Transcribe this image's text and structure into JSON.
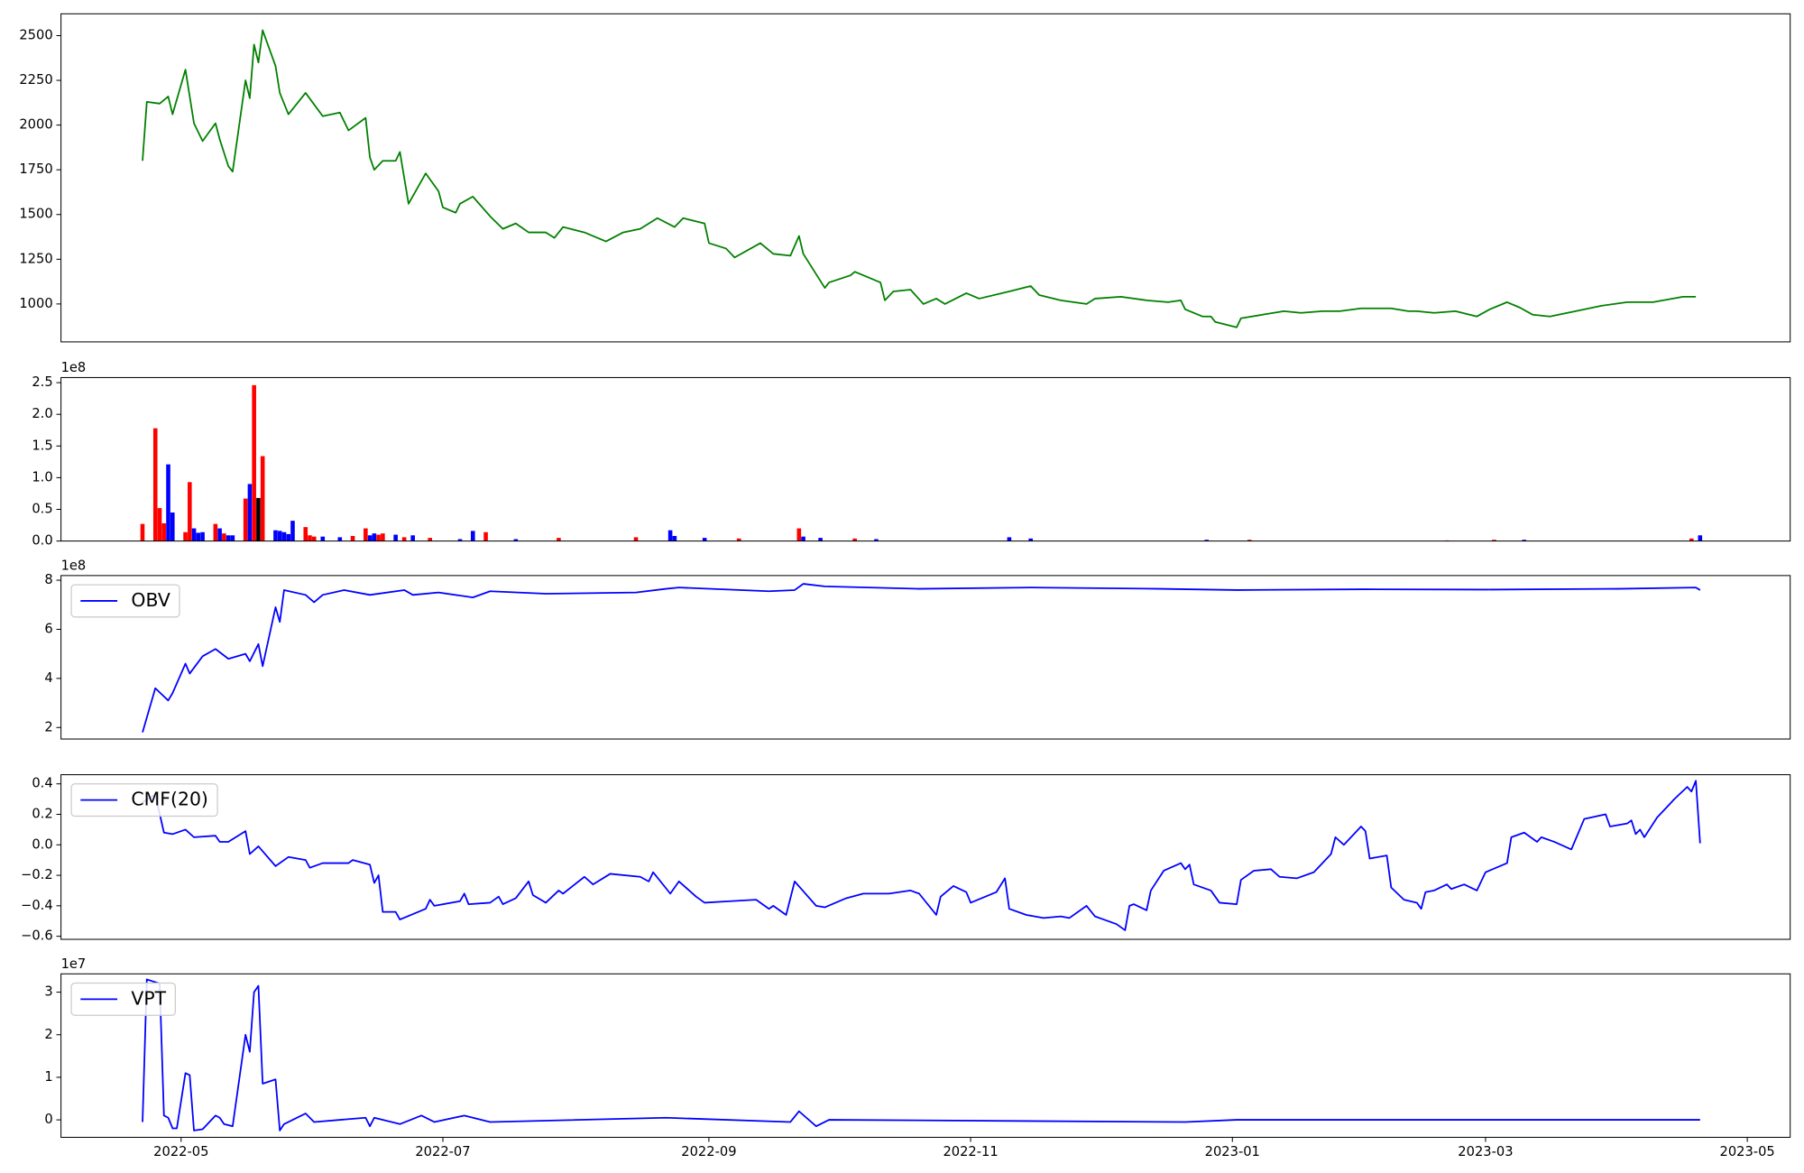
{
  "chart_data": [
    {
      "type": "line",
      "color": "green",
      "x": [
        "2022-04-22",
        "2022-04-23",
        "2022-04-26",
        "2022-04-28",
        "2022-04-29",
        "2022-05-02",
        "2022-05-04",
        "2022-05-06",
        "2022-05-09",
        "2022-05-10",
        "2022-05-12",
        "2022-05-13",
        "2022-05-16",
        "2022-05-17",
        "2022-05-18",
        "2022-05-19",
        "2022-05-20",
        "2022-05-23",
        "2022-05-24",
        "2022-05-26",
        "2022-05-30",
        "2022-06-03",
        "2022-06-07",
        "2022-06-09",
        "2022-06-13",
        "2022-06-14",
        "2022-06-15",
        "2022-06-17",
        "2022-06-20",
        "2022-06-21",
        "2022-06-23",
        "2022-06-27",
        "2022-06-30",
        "2022-07-01",
        "2022-07-04",
        "2022-07-05",
        "2022-07-08",
        "2022-07-12",
        "2022-07-15",
        "2022-07-18",
        "2022-07-21",
        "2022-07-25",
        "2022-07-27",
        "2022-07-29",
        "2022-08-03",
        "2022-08-08",
        "2022-08-12",
        "2022-08-16",
        "2022-08-20",
        "2022-08-24",
        "2022-08-26",
        "2022-08-31",
        "2022-09-01",
        "2022-09-05",
        "2022-09-07",
        "2022-09-13",
        "2022-09-16",
        "2022-09-20",
        "2022-09-22",
        "2022-09-23",
        "2022-09-28",
        "2022-09-29",
        "2022-10-04",
        "2022-10-05",
        "2022-10-11",
        "2022-10-12",
        "2022-10-14",
        "2022-10-18",
        "2022-10-21",
        "2022-10-24",
        "2022-10-26",
        "2022-10-31",
        "2022-11-03",
        "2022-11-10",
        "2022-11-15",
        "2022-11-17",
        "2022-11-22",
        "2022-11-28",
        "2022-11-30",
        "2022-12-06",
        "2022-12-12",
        "2022-12-17",
        "2022-12-20",
        "2022-12-21",
        "2022-12-25",
        "2022-12-27",
        "2022-12-28",
        "2023-01-02",
        "2023-01-03",
        "2023-01-08",
        "2023-01-13",
        "2023-01-17",
        "2023-01-22",
        "2023-01-26",
        "2023-01-31",
        "2023-02-07",
        "2023-02-11",
        "2023-02-13",
        "2023-02-17",
        "2023-02-22",
        "2023-02-27",
        "2023-03-02",
        "2023-03-06",
        "2023-03-09",
        "2023-03-12",
        "2023-03-16",
        "2023-03-22",
        "2023-03-28",
        "2023-04-03",
        "2023-04-09",
        "2023-04-16",
        "2023-04-19"
      ],
      "values": [
        1800,
        2130,
        2120,
        2160,
        2060,
        2310,
        2010,
        1910,
        2010,
        1920,
        1770,
        1740,
        2250,
        2150,
        2450,
        2350,
        2530,
        2330,
        2180,
        2060,
        2180,
        2050,
        2070,
        1970,
        2040,
        1820,
        1750,
        1800,
        1800,
        1850,
        1560,
        1730,
        1630,
        1540,
        1510,
        1560,
        1600,
        1490,
        1420,
        1450,
        1400,
        1400,
        1370,
        1430,
        1400,
        1350,
        1400,
        1420,
        1480,
        1430,
        1480,
        1450,
        1340,
        1310,
        1260,
        1340,
        1280,
        1270,
        1380,
        1280,
        1090,
        1120,
        1160,
        1180,
        1120,
        1020,
        1070,
        1080,
        1000,
        1030,
        1000,
        1060,
        1030,
        1070,
        1100,
        1050,
        1020,
        1000,
        1030,
        1040,
        1020,
        1010,
        1020,
        970,
        930,
        930,
        900,
        870,
        920,
        940,
        960,
        950,
        960,
        960,
        975,
        975,
        960,
        960,
        950,
        960,
        930,
        970,
        1010,
        980,
        940,
        930,
        960,
        990,
        1010,
        1010,
        1040,
        1040
      ],
      "ylim": [
        788,
        2622
      ],
      "yticks": [
        1000,
        1250,
        1500,
        1750,
        2000,
        2250,
        2500
      ]
    },
    {
      "type": "bar",
      "offset_label": "1e8",
      "x": [
        "2022-04-22",
        "2022-04-25",
        "2022-04-26",
        "2022-04-27",
        "2022-04-28",
        "2022-04-29",
        "2022-05-02",
        "2022-05-03",
        "2022-05-04",
        "2022-05-05",
        "2022-05-06",
        "2022-05-09",
        "2022-05-10",
        "2022-05-11",
        "2022-05-12",
        "2022-05-13",
        "2022-05-16",
        "2022-05-17",
        "2022-05-18",
        "2022-05-19",
        "2022-05-20",
        "2022-05-23",
        "2022-05-24",
        "2022-05-25",
        "2022-05-26",
        "2022-05-27",
        "2022-05-30",
        "2022-05-31",
        "2022-06-01",
        "2022-06-03",
        "2022-06-07",
        "2022-06-10",
        "2022-06-13",
        "2022-06-14",
        "2022-06-15",
        "2022-06-16",
        "2022-06-17",
        "2022-06-20",
        "2022-06-22",
        "2022-06-24",
        "2022-06-28",
        "2022-07-05",
        "2022-07-08",
        "2022-07-11",
        "2022-07-18",
        "2022-07-28",
        "2022-08-15",
        "2022-08-23",
        "2022-08-24",
        "2022-08-31",
        "2022-09-08",
        "2022-09-22",
        "2022-09-23",
        "2022-09-27",
        "2022-10-05",
        "2022-10-10",
        "2022-11-10",
        "2022-11-15",
        "2022-12-26",
        "2023-01-05",
        "2023-02-20",
        "2023-03-03",
        "2023-03-10",
        "2023-04-18",
        "2023-04-20"
      ],
      "values": [
        0.27,
        1.78,
        0.52,
        0.28,
        1.21,
        0.45,
        0.14,
        0.93,
        0.2,
        0.13,
        0.14,
        0.27,
        0.2,
        0.12,
        0.09,
        0.09,
        0.67,
        0.9,
        2.46,
        0.68,
        1.34,
        0.17,
        0.16,
        0.14,
        0.11,
        0.32,
        0.22,
        0.09,
        0.07,
        0.07,
        0.06,
        0.08,
        0.2,
        0.09,
        0.12,
        0.1,
        0.12,
        0.1,
        0.06,
        0.09,
        0.05,
        0.03,
        0.16,
        0.14,
        0.03,
        0.05,
        0.06,
        0.17,
        0.08,
        0.05,
        0.04,
        0.2,
        0.07,
        0.05,
        0.04,
        0.03,
        0.06,
        0.04,
        0.02,
        0.02,
        0.01,
        0.02,
        0.02,
        0.04,
        0.09
      ],
      "colors": [
        "red",
        "red",
        "red",
        "red",
        "blue",
        "blue",
        "red",
        "red",
        "blue",
        "blue",
        "blue",
        "red",
        "blue",
        "red",
        "blue",
        "blue",
        "red",
        "blue",
        "red",
        "black",
        "red",
        "blue",
        "blue",
        "blue",
        "blue",
        "blue",
        "red",
        "red",
        "red",
        "blue",
        "blue",
        "red",
        "red",
        "blue",
        "blue",
        "red",
        "red",
        "blue",
        "red",
        "blue",
        "red",
        "blue",
        "blue",
        "red",
        "blue",
        "red",
        "red",
        "blue",
        "blue",
        "blue",
        "red",
        "red",
        "blue",
        "blue",
        "red",
        "blue",
        "blue",
        "blue",
        "blue",
        "red",
        "red",
        "red",
        "blue",
        "red",
        "blue"
      ],
      "ylim": [
        0,
        2.58
      ],
      "yticks": [
        {
          "value": 0,
          "label": "0.0"
        },
        0.5,
        {
          "value": 1,
          "label": "1.0"
        },
        1.5,
        {
          "value": 2,
          "label": "2.0"
        },
        2.5
      ]
    },
    {
      "type": "line",
      "offset_label": "1e8",
      "legend": "upper left",
      "x": [
        "2022-04-22",
        "2022-04-25",
        "2022-04-28",
        "2022-04-29",
        "2022-05-02",
        "2022-05-03",
        "2022-05-06",
        "2022-05-09",
        "2022-05-12",
        "2022-05-16",
        "2022-05-17",
        "2022-05-19",
        "2022-05-20",
        "2022-05-23",
        "2022-05-24",
        "2022-05-25",
        "2022-05-30",
        "2022-06-01",
        "2022-06-03",
        "2022-06-08",
        "2022-06-14",
        "2022-06-22",
        "2022-06-24",
        "2022-06-30",
        "2022-07-08",
        "2022-07-12",
        "2022-07-25",
        "2022-08-15",
        "2022-08-22",
        "2022-08-25",
        "2022-09-15",
        "2022-09-21",
        "2022-09-23",
        "2022-09-28",
        "2022-10-20",
        "2022-11-15",
        "2022-12-15",
        "2023-01-02",
        "2023-02-01",
        "2023-03-01",
        "2023-04-01",
        "2023-04-19",
        "2023-04-20"
      ],
      "series": [
        {
          "name": "OBV",
          "color": "blue",
          "values": [
            1.8,
            3.6,
            3.1,
            3.4,
            4.6,
            4.2,
            4.9,
            5.2,
            4.8,
            5.0,
            4.7,
            5.4,
            4.5,
            6.9,
            6.3,
            7.6,
            7.4,
            7.1,
            7.4,
            7.6,
            7.4,
            7.6,
            7.4,
            7.5,
            7.3,
            7.55,
            7.45,
            7.5,
            7.65,
            7.7,
            7.55,
            7.6,
            7.85,
            7.75,
            7.65,
            7.7,
            7.65,
            7.6,
            7.63,
            7.62,
            7.65,
            7.7,
            7.6
          ]
        }
      ],
      "ylim": [
        1.53,
        8.19
      ],
      "yticks": [
        2,
        4,
        6,
        8
      ]
    },
    {
      "type": "line",
      "legend": "upper left",
      "x": [
        "2022-04-22",
        "2022-04-25",
        "2022-04-27",
        "2022-04-29",
        "2022-05-02",
        "2022-05-04",
        "2022-05-09",
        "2022-05-10",
        "2022-05-12",
        "2022-05-16",
        "2022-05-17",
        "2022-05-19",
        "2022-05-23",
        "2022-05-26",
        "2022-05-30",
        "2022-05-31",
        "2022-06-03",
        "2022-06-09",
        "2022-06-10",
        "2022-06-14",
        "2022-06-15",
        "2022-06-16",
        "2022-06-17",
        "2022-06-20",
        "2022-06-21",
        "2022-06-27",
        "2022-06-28",
        "2022-06-29",
        "2022-07-05",
        "2022-07-06",
        "2022-07-07",
        "2022-07-12",
        "2022-07-14",
        "2022-07-15",
        "2022-07-18",
        "2022-07-21",
        "2022-07-22",
        "2022-07-25",
        "2022-07-28",
        "2022-07-29",
        "2022-08-03",
        "2022-08-05",
        "2022-08-09",
        "2022-08-16",
        "2022-08-18",
        "2022-08-19",
        "2022-08-23",
        "2022-08-25",
        "2022-08-29",
        "2022-08-31",
        "2022-09-06",
        "2022-09-12",
        "2022-09-15",
        "2022-09-16",
        "2022-09-19",
        "2022-09-21",
        "2022-09-26",
        "2022-09-28",
        "2022-10-03",
        "2022-10-07",
        "2022-10-13",
        "2022-10-18",
        "2022-10-20",
        "2022-10-24",
        "2022-10-25",
        "2022-10-28",
        "2022-10-31",
        "2022-11-01",
        "2022-11-07",
        "2022-11-09",
        "2022-11-10",
        "2022-11-14",
        "2022-11-18",
        "2022-11-22",
        "2022-11-24",
        "2022-11-28",
        "2022-11-30",
        "2022-12-02",
        "2022-12-05",
        "2022-12-07",
        "2022-12-08",
        "2022-12-09",
        "2022-12-12",
        "2022-12-13",
        "2022-12-16",
        "2022-12-20",
        "2022-12-21",
        "2022-12-22",
        "2022-12-23",
        "2022-12-27",
        "2022-12-29",
        "2023-01-02",
        "2023-01-03",
        "2023-01-06",
        "2023-01-10",
        "2023-01-12",
        "2023-01-16",
        "2023-01-20",
        "2023-01-24",
        "2023-01-25",
        "2023-01-27",
        "2023-01-31",
        "2023-02-01",
        "2023-02-02",
        "2023-02-06",
        "2023-02-07",
        "2023-02-10",
        "2023-02-13",
        "2023-02-14",
        "2023-02-15",
        "2023-02-17",
        "2023-02-20",
        "2023-02-21",
        "2023-02-24",
        "2023-02-27",
        "2023-03-01",
        "2023-03-06",
        "2023-03-07",
        "2023-03-10",
        "2023-03-13",
        "2023-03-14",
        "2023-03-17",
        "2023-03-21",
        "2023-03-24",
        "2023-03-29",
        "2023-03-30",
        "2023-04-03",
        "2023-04-04",
        "2023-04-05",
        "2023-04-06",
        "2023-04-07",
        "2023-04-10",
        "2023-04-13",
        "2023-04-14",
        "2023-04-17",
        "2023-04-18",
        "2023-04-19",
        "2023-04-20"
      ],
      "series": [
        {
          "name": "CMF(20)",
          "color": "blue",
          "values": [
            0.28,
            0.33,
            0.08,
            0.07,
            0.1,
            0.05,
            0.06,
            0.02,
            0.02,
            0.09,
            -0.06,
            -0.01,
            -0.14,
            -0.08,
            -0.1,
            -0.15,
            -0.12,
            -0.12,
            -0.1,
            -0.13,
            -0.25,
            -0.2,
            -0.44,
            -0.44,
            -0.49,
            -0.42,
            -0.36,
            -0.4,
            -0.37,
            -0.32,
            -0.39,
            -0.38,
            -0.34,
            -0.39,
            -0.35,
            -0.24,
            -0.33,
            -0.38,
            -0.3,
            -0.32,
            -0.21,
            -0.26,
            -0.19,
            -0.21,
            -0.24,
            -0.18,
            -0.32,
            -0.24,
            -0.34,
            -0.38,
            -0.37,
            -0.36,
            -0.42,
            -0.4,
            -0.46,
            -0.24,
            -0.4,
            -0.41,
            -0.35,
            -0.32,
            -0.32,
            -0.3,
            -0.32,
            -0.46,
            -0.34,
            -0.27,
            -0.31,
            -0.38,
            -0.31,
            -0.22,
            -0.42,
            -0.46,
            -0.48,
            -0.47,
            -0.48,
            -0.4,
            -0.47,
            -0.49,
            -0.52,
            -0.56,
            -0.4,
            -0.39,
            -0.43,
            -0.3,
            -0.17,
            -0.12,
            -0.16,
            -0.13,
            -0.26,
            -0.3,
            -0.38,
            -0.39,
            -0.23,
            -0.17,
            -0.16,
            -0.21,
            -0.22,
            -0.18,
            -0.06,
            0.05,
            0.0,
            0.12,
            0.09,
            -0.09,
            -0.07,
            -0.28,
            -0.36,
            -0.38,
            -0.42,
            -0.31,
            -0.3,
            -0.26,
            -0.29,
            -0.26,
            -0.3,
            -0.18,
            -0.12,
            0.05,
            0.08,
            0.02,
            0.05,
            0.02,
            -0.03,
            0.17,
            0.2,
            0.12,
            0.14,
            0.16,
            0.07,
            0.1,
            0.05,
            0.18,
            0.27,
            0.3,
            0.38,
            0.35,
            0.42,
            0.01
          ]
        }
      ],
      "ylim": [
        -0.62,
        0.46
      ],
      "yticks": [
        {
          "value": -0.6,
          "label": "−0.6"
        },
        {
          "value": -0.4,
          "label": "−0.4"
        },
        {
          "value": -0.2,
          "label": "−0.2"
        },
        {
          "value": 0,
          "label": "0.0"
        },
        0.2,
        0.4
      ]
    },
    {
      "type": "line",
      "offset_label": "1e7",
      "legend": "upper left",
      "x": [
        "2022-04-22",
        "2022-04-23",
        "2022-04-26",
        "2022-04-27",
        "2022-04-28",
        "2022-04-29",
        "2022-04-30",
        "2022-05-02",
        "2022-05-03",
        "2022-05-04",
        "2022-05-06",
        "2022-05-09",
        "2022-05-10",
        "2022-05-11",
        "2022-05-13",
        "2022-05-16",
        "2022-05-17",
        "2022-05-18",
        "2022-05-19",
        "2022-05-20",
        "2022-05-23",
        "2022-05-24",
        "2022-05-25",
        "2022-05-30",
        "2022-06-01",
        "2022-06-13",
        "2022-06-14",
        "2022-06-15",
        "2022-06-21",
        "2022-06-26",
        "2022-06-29",
        "2022-07-06",
        "2022-07-12",
        "2022-08-22",
        "2022-09-20",
        "2022-09-22",
        "2022-09-26",
        "2022-09-29",
        "2022-12-21",
        "2023-01-02",
        "2023-04-20"
      ],
      "series": [
        {
          "name": "VPT",
          "color": "blue",
          "values": [
            -0.05,
            3.3,
            3.2,
            0.1,
            0.05,
            -0.2,
            -0.2,
            1.1,
            1.05,
            -0.25,
            -0.22,
            0.1,
            0.05,
            -0.1,
            -0.15,
            2.0,
            1.6,
            3.0,
            3.15,
            0.85,
            0.95,
            -0.25,
            -0.1,
            0.15,
            -0.05,
            0.05,
            -0.15,
            0.05,
            -0.1,
            0.1,
            -0.05,
            0.1,
            -0.05,
            0.05,
            -0.05,
            0.2,
            -0.15,
            0.0,
            -0.05,
            0.0,
            0.0
          ]
        }
      ],
      "ylim": [
        -0.41,
        3.43
      ],
      "yticks": [
        0,
        1,
        2,
        3
      ],
      "xlim": [
        "2022-04-03",
        "2023-05-11"
      ],
      "xticks": [
        {
          "value": "2022-05-01",
          "label": "2022-05"
        },
        {
          "value": "2022-07-01",
          "label": "2022-07"
        },
        {
          "value": "2022-09-01",
          "label": "2022-09"
        },
        {
          "value": "2022-11-01",
          "label": "2022-11"
        },
        {
          "value": "2023-01-01",
          "label": "2023-01"
        },
        {
          "value": "2023-03-01",
          "label": "2023-03"
        },
        {
          "value": "2023-05-01",
          "label": "2023-05"
        }
      ]
    }
  ]
}
